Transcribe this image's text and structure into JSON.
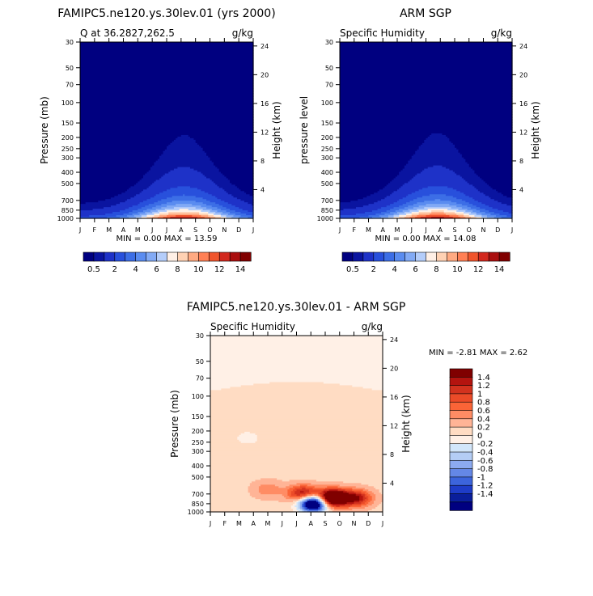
{
  "chart_data": [
    {
      "type": "heatmap",
      "title": "FAMIPC5.ne120.ys.30lev.01 (yrs 2000)",
      "left_label": "Q at 36.2827,262.5",
      "right_label": "g/kg",
      "ylabel": "Pressure (mb)",
      "y2label": "Height (km)",
      "x_ticks": [
        "J",
        "F",
        "M",
        "A",
        "M",
        "J",
        "J",
        "A",
        "S",
        "O",
        "N",
        "D",
        "J"
      ],
      "y_ticks": [
        "30",
        "50",
        "70",
        "100",
        "150",
        "200",
        "250",
        "300",
        "400",
        "500",
        "700",
        "850",
        "1000"
      ],
      "y_tick_values": [
        30,
        50,
        70,
        100,
        150,
        200,
        250,
        300,
        400,
        500,
        700,
        850,
        1000
      ],
      "y2_ticks": [
        "24",
        "20",
        "16",
        "12",
        "8",
        "4"
      ],
      "y2_tick_values": [
        24,
        20,
        16,
        12,
        8,
        4
      ],
      "ylim": [
        30,
        1000
      ],
      "log_scale": true,
      "min_label": "MIN =",
      "min": "0.00",
      "max_label": "MAX =",
      "max": "13.59",
      "peak": 13.59,
      "peak_month": 7.2,
      "levels": [
        "0.5",
        "2",
        "4",
        "6",
        "8",
        "10",
        "12",
        "14"
      ],
      "colorbar_levels": [
        0.5,
        1,
        2,
        3,
        4,
        5,
        6,
        7,
        8,
        9,
        10,
        11,
        12,
        13,
        14
      ],
      "colorbar_colors": [
        "#000080",
        "#0a14a0",
        "#1e32c8",
        "#2850dc",
        "#3c6ee6",
        "#5a8cf0",
        "#82aaf5",
        "#b4cdfa",
        "#fff0e6",
        "#ffd2b4",
        "#ffaa82",
        "#ff8055",
        "#f0552d",
        "#d2281e",
        "#aa0f0f",
        "#800000"
      ]
    },
    {
      "type": "heatmap",
      "title": "ARM SGP",
      "left_label": "Specific Humidity",
      "right_label": "g/kg",
      "ylabel": "pressure level",
      "y2label": "Height (km)",
      "x_ticks": [
        "J",
        "F",
        "M",
        "A",
        "M",
        "J",
        "J",
        "A",
        "S",
        "O",
        "N",
        "D",
        "J"
      ],
      "y_ticks": [
        "30",
        "50",
        "70",
        "100",
        "150",
        "200",
        "250",
        "300",
        "400",
        "500",
        "700",
        "850",
        "1000"
      ],
      "y_tick_values": [
        30,
        50,
        70,
        100,
        150,
        200,
        250,
        300,
        400,
        500,
        700,
        850,
        1000
      ],
      "y2_ticks": [
        "24",
        "20",
        "16",
        "12",
        "8",
        "4"
      ],
      "y2_tick_values": [
        24,
        20,
        16,
        12,
        8,
        4
      ],
      "ylim": [
        30,
        1000
      ],
      "log_scale": true,
      "min_label": "MIN =",
      "min": "0.00",
      "max_label": "MAX =",
      "max": "14.08",
      "peak": 14.08,
      "peak_month": 6.8,
      "levels": [
        "0.5",
        "2",
        "4",
        "6",
        "8",
        "10",
        "12",
        "14"
      ],
      "colorbar_levels": [
        0.5,
        1,
        2,
        3,
        4,
        5,
        6,
        7,
        8,
        9,
        10,
        11,
        12,
        13,
        14
      ],
      "colorbar_colors": [
        "#000080",
        "#0a14a0",
        "#1e32c8",
        "#2850dc",
        "#3c6ee6",
        "#5a8cf0",
        "#82aaf5",
        "#b4cdfa",
        "#fff0e6",
        "#ffd2b4",
        "#ffaa82",
        "#ff8055",
        "#f0552d",
        "#d2281e",
        "#aa0f0f",
        "#800000"
      ]
    },
    {
      "type": "heatmap",
      "title": "FAMIPC5.ne120.ys.30lev.01 - ARM SGP",
      "left_label": "Specific Humidity",
      "right_label": "g/kg",
      "ylabel": "Pressure (mb)",
      "y2label": "Height (km)",
      "x_ticks": [
        "J",
        "F",
        "M",
        "A",
        "M",
        "J",
        "J",
        "A",
        "S",
        "O",
        "N",
        "D",
        "J"
      ],
      "y_ticks": [
        "30",
        "50",
        "70",
        "100",
        "150",
        "200",
        "250",
        "300",
        "400",
        "500",
        "700",
        "850",
        "1000"
      ],
      "y_tick_values": [
        30,
        50,
        70,
        100,
        150,
        200,
        250,
        300,
        400,
        500,
        700,
        850,
        1000
      ],
      "y2_ticks": [
        "24",
        "20",
        "16",
        "12",
        "8",
        "4"
      ],
      "y2_tick_values": [
        24,
        20,
        16,
        12,
        8,
        4
      ],
      "ylim": [
        30,
        1000
      ],
      "log_scale": true,
      "min_label": "MIN =",
      "min": "-2.81",
      "max_label": "MAX =",
      "max": "2.62",
      "levels": [
        "1.4",
        "1.2",
        "1",
        "0.8",
        "0.6",
        "0.4",
        "0.2",
        "0",
        "-0.2",
        "-0.4",
        "-0.6",
        "-0.8",
        "-1",
        "-1.2",
        "-1.4"
      ],
      "colorbar_colors": [
        "#800000",
        "#b4140f",
        "#d2321e",
        "#eb4b28",
        "#fa6437",
        "#ff8c64",
        "#ffb496",
        "#ffdcc3",
        "#fff0e6",
        "#d2e6fa",
        "#b4cdf5",
        "#8caaf0",
        "#6487e6",
        "#3c64dc",
        "#1e3cc8",
        "#0a1e9b",
        "#000080"
      ],
      "diff_anomalies": [
        {
          "month": 7.2,
          "pressure": 840,
          "value": -2.81
        },
        {
          "month": 8.5,
          "pressure": 760,
          "value": 2.62
        },
        {
          "month": 6.5,
          "pressure": 700,
          "value": 1.4
        },
        {
          "month": 10.2,
          "pressure": 760,
          "value": 1.2
        },
        {
          "month": 4.0,
          "pressure": 640,
          "value": 0.4
        },
        {
          "month": 2.6,
          "pressure": 230,
          "value": -0.2
        }
      ]
    }
  ]
}
